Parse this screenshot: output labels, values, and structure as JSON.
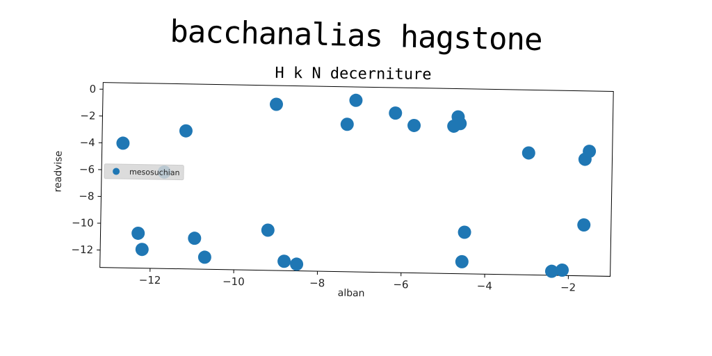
{
  "chart_data": {
    "type": "scatter",
    "title": "bacchanalias hagstone",
    "subtitle": "H k N decerniture",
    "xlabel": "alban",
    "ylabel": "readvise",
    "xlim": [
      -13.2,
      -1.0
    ],
    "ylim": [
      -13.3,
      0.5
    ],
    "xticks": [
      -12,
      -10,
      -8,
      -6,
      -4,
      -2
    ],
    "yticks": [
      0,
      -2,
      -4,
      -6,
      -8,
      -10,
      -12
    ],
    "xtick_labels": [
      "−12",
      "−10",
      "−8",
      "−6",
      "−4",
      "−2"
    ],
    "ytick_labels": [
      "0",
      "−2",
      "−4",
      "−6",
      "−8",
      "−10",
      "−12"
    ],
    "grid": false,
    "legend_position": "center-left",
    "series": [
      {
        "name": "mesosuchian",
        "color": "#1f77b4",
        "x": [
          -12.7,
          -11.2,
          -11.7,
          -9.05,
          -7.15,
          -7.35,
          -6.2,
          -5.75,
          -4.7,
          -4.65,
          -4.8,
          -3.0,
          -1.65,
          -1.55,
          -12.3,
          -12.2,
          -10.95,
          -10.7,
          -9.2,
          -8.8,
          -8.5,
          -4.5,
          -4.55,
          -2.4,
          -2.15,
          -1.65
        ],
        "y": [
          -4.0,
          -3.0,
          -6.1,
          -0.9,
          -0.5,
          -2.3,
          -1.4,
          -2.3,
          -1.6,
          -2.1,
          -2.3,
          -4.2,
          -4.6,
          -4.0,
          -10.7,
          -11.9,
          -11.0,
          -12.4,
          -10.3,
          -12.6,
          -12.8,
          -10.2,
          -12.4,
          -13.0,
          -12.9,
          -9.5
        ]
      }
    ]
  }
}
